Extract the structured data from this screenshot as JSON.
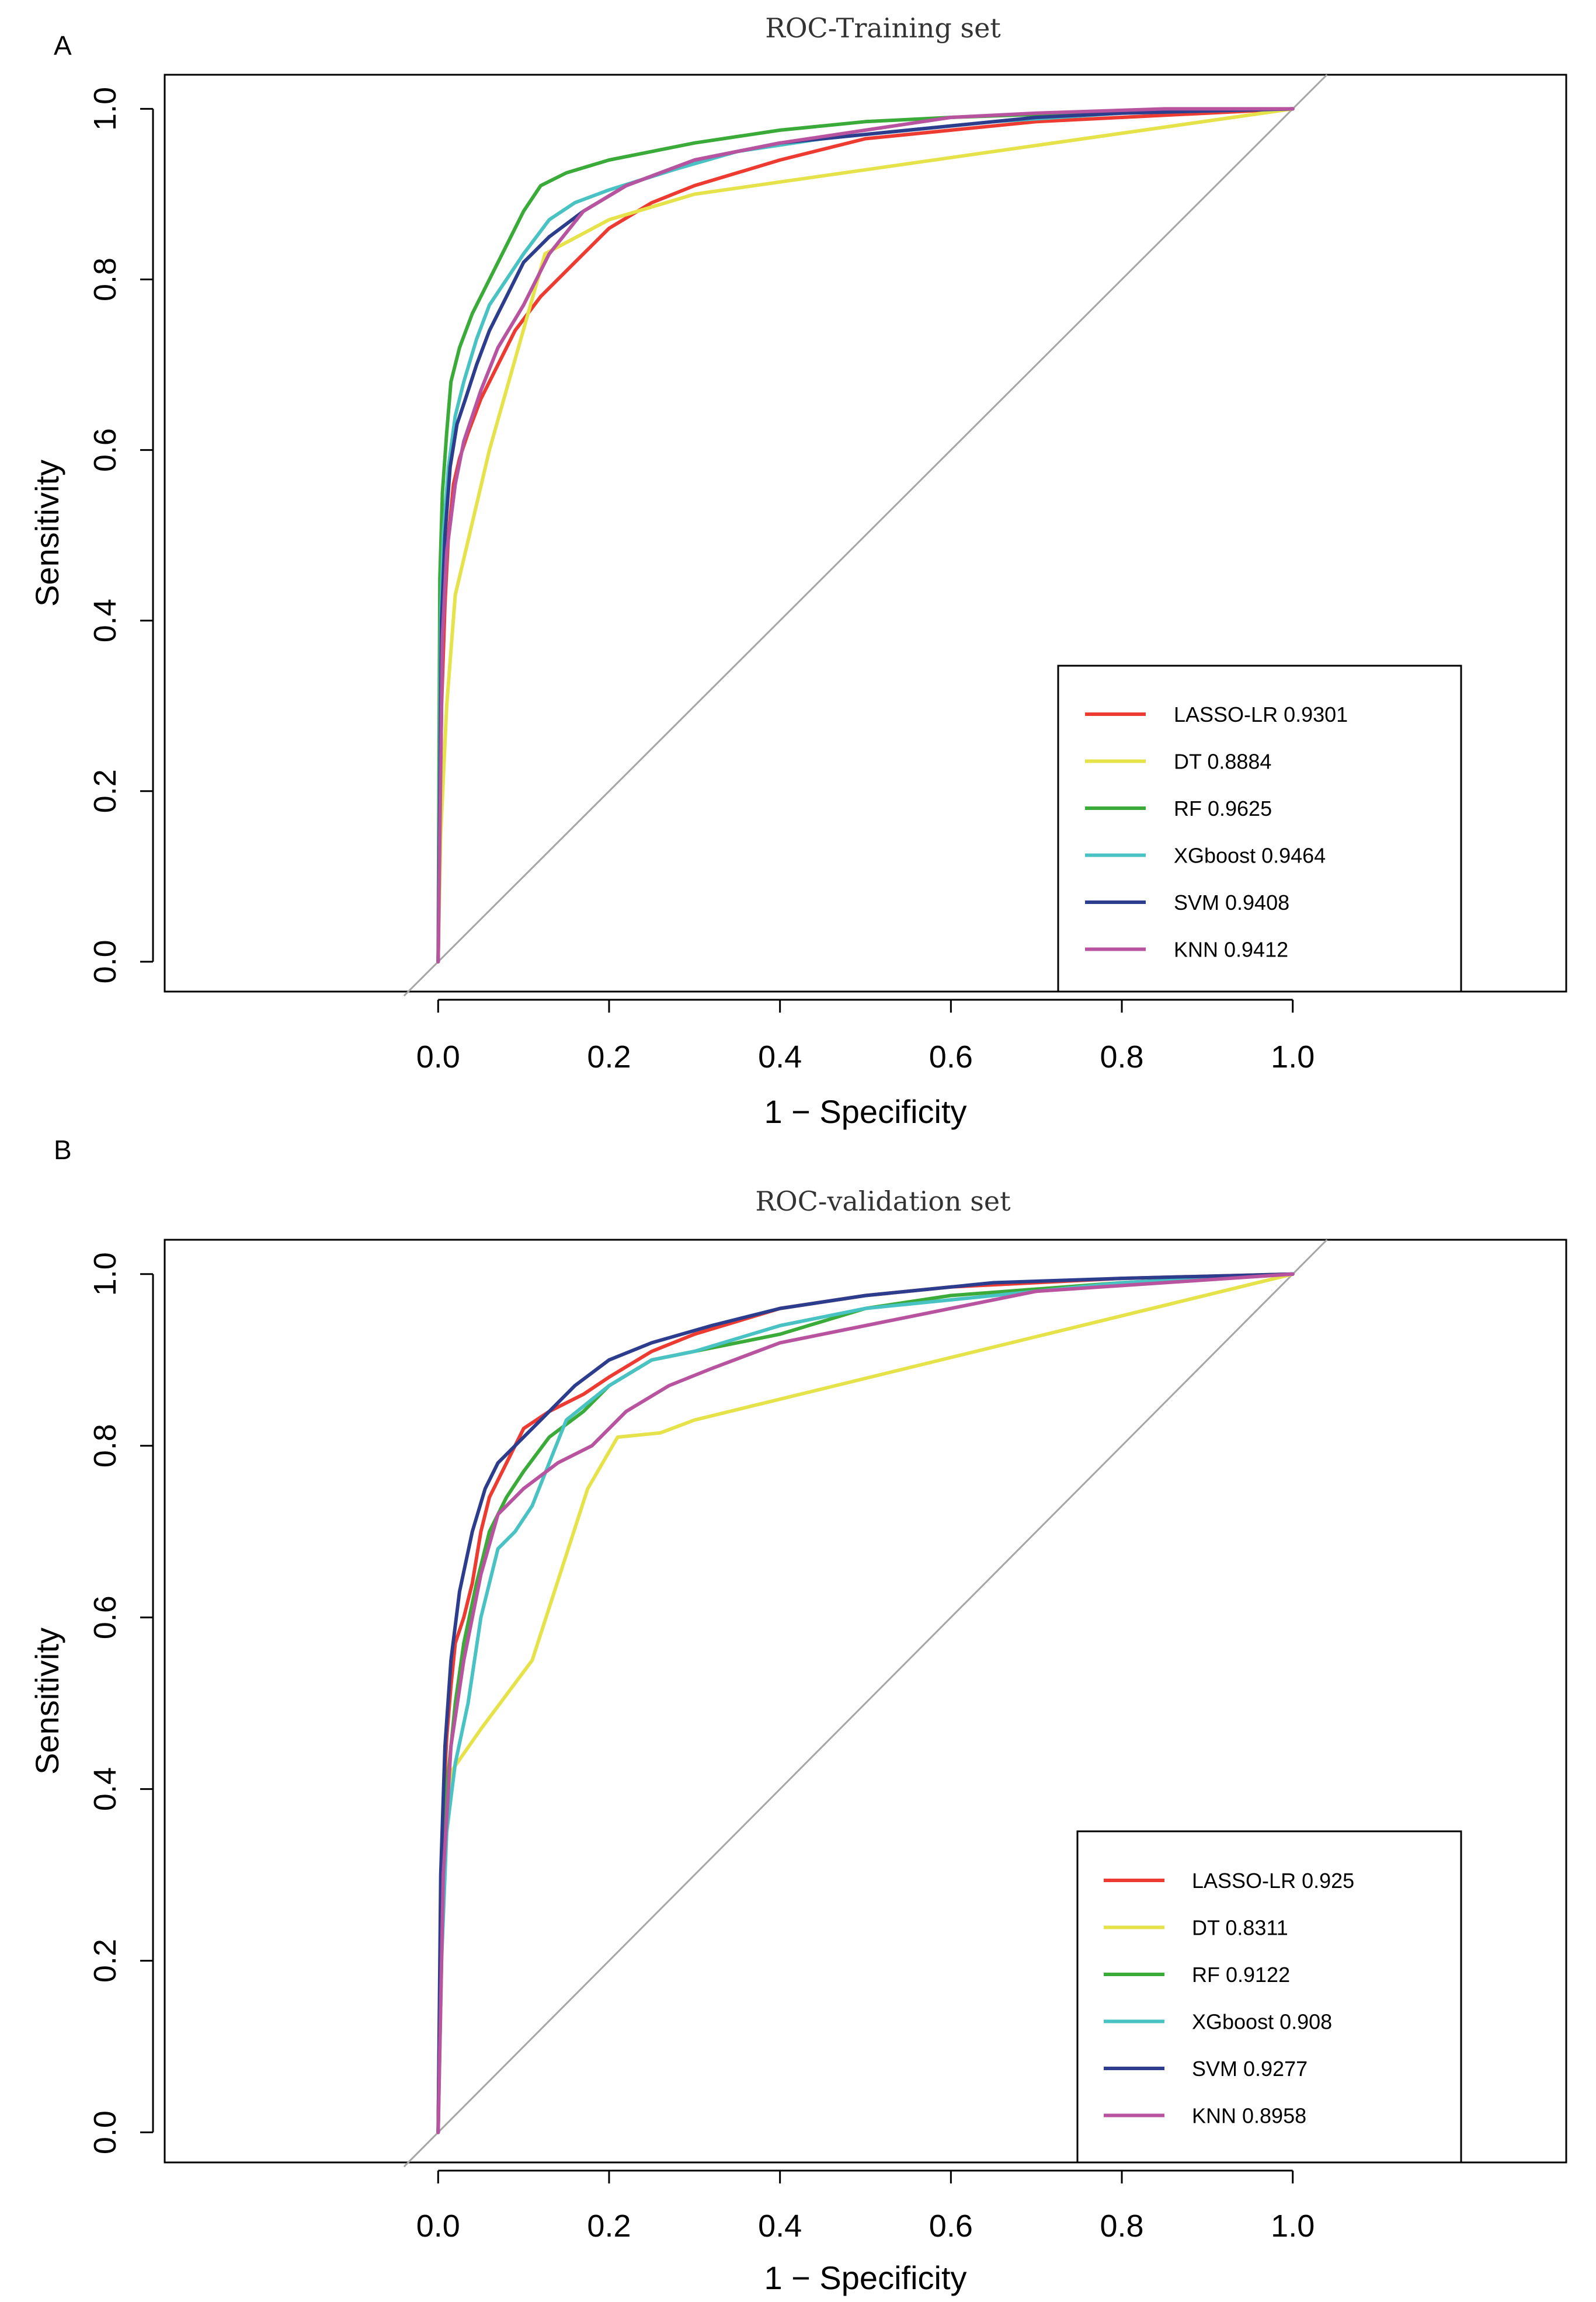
{
  "chart_data": [
    {
      "type": "line",
      "panel": "A",
      "title": "ROC-Training set",
      "xlabel": "1 − Specificity",
      "ylabel": "Sensitivity",
      "xlim": [
        -0.32,
        1.32
      ],
      "ylim": [
        -0.035,
        1.04
      ],
      "xticks": [
        0.0,
        0.2,
        0.4,
        0.6,
        0.8,
        1.0
      ],
      "yticks": [
        0.0,
        0.2,
        0.4,
        0.6,
        0.8,
        1.0
      ],
      "xtick_labels": [
        "0.0",
        "0.2",
        "0.4",
        "0.6",
        "0.8",
        "1.0"
      ],
      "ytick_labels": [
        "0.0",
        "0.2",
        "0.4",
        "0.6",
        "0.8",
        "1.0"
      ],
      "reference_line": [
        [
          -0.04,
          -0.04
        ],
        [
          1.04,
          1.04
        ]
      ],
      "legend_position": "bottom-right",
      "series": [
        {
          "name": "LASSO-LR",
          "auc": "0.9301",
          "color": "#ee3b32",
          "x": [
            0,
            0.004,
            0.008,
            0.012,
            0.018,
            0.025,
            0.035,
            0.05,
            0.07,
            0.09,
            0.12,
            0.16,
            0.2,
            0.25,
            0.3,
            0.4,
            0.5,
            0.6,
            0.7,
            0.8,
            0.9,
            1.0
          ],
          "y": [
            0,
            0.3,
            0.42,
            0.5,
            0.56,
            0.59,
            0.62,
            0.66,
            0.7,
            0.74,
            0.78,
            0.82,
            0.86,
            0.89,
            0.91,
            0.94,
            0.965,
            0.975,
            0.985,
            0.99,
            0.995,
            1.0
          ]
        },
        {
          "name": "DT",
          "auc": "0.8884",
          "color": "#e6e24a",
          "x": [
            0,
            0.003,
            0.01,
            0.02,
            0.06,
            0.125,
            0.2,
            0.3,
            1.0
          ],
          "y": [
            0,
            0.15,
            0.3,
            0.43,
            0.6,
            0.83,
            0.87,
            0.9,
            1.0
          ]
        },
        {
          "name": "RF",
          "auc": "0.9625",
          "color": "#3aab38",
          "x": [
            0,
            0.002,
            0.005,
            0.01,
            0.015,
            0.025,
            0.04,
            0.06,
            0.08,
            0.1,
            0.12,
            0.15,
            0.2,
            0.25,
            0.3,
            0.4,
            0.5,
            0.6,
            0.8,
            1.0
          ],
          "y": [
            0,
            0.45,
            0.55,
            0.62,
            0.68,
            0.72,
            0.76,
            0.8,
            0.84,
            0.88,
            0.91,
            0.925,
            0.94,
            0.95,
            0.96,
            0.975,
            0.985,
            0.99,
            0.997,
            1.0
          ]
        },
        {
          "name": "XGboost",
          "auc": "0.9464",
          "color": "#48c2c3",
          "x": [
            0,
            0.003,
            0.006,
            0.012,
            0.02,
            0.03,
            0.045,
            0.06,
            0.08,
            0.1,
            0.13,
            0.16,
            0.2,
            0.28,
            0.35,
            0.45,
            0.55,
            0.65,
            0.8,
            1.0
          ],
          "y": [
            0,
            0.4,
            0.5,
            0.58,
            0.64,
            0.68,
            0.73,
            0.77,
            0.8,
            0.83,
            0.87,
            0.89,
            0.905,
            0.93,
            0.95,
            0.965,
            0.975,
            0.985,
            0.995,
            1.0
          ]
        },
        {
          "name": "SVM",
          "auc": "0.9408",
          "color": "#2d3d8e",
          "x": [
            0,
            0.004,
            0.008,
            0.014,
            0.022,
            0.032,
            0.045,
            0.06,
            0.08,
            0.1,
            0.13,
            0.17,
            0.22,
            0.3,
            0.4,
            0.5,
            0.6,
            0.7,
            0.8,
            1.0
          ],
          "y": [
            0,
            0.4,
            0.5,
            0.58,
            0.63,
            0.66,
            0.7,
            0.74,
            0.78,
            0.82,
            0.85,
            0.88,
            0.91,
            0.94,
            0.96,
            0.97,
            0.98,
            0.99,
            0.995,
            1.0
          ]
        },
        {
          "name": "KNN",
          "auc": "0.9412",
          "color": "#b8539f",
          "x": [
            0,
            0.005,
            0.01,
            0.02,
            0.03,
            0.05,
            0.07,
            0.1,
            0.13,
            0.17,
            0.22,
            0.3,
            0.4,
            0.5,
            0.6,
            0.7,
            0.85,
            1.0
          ],
          "y": [
            0,
            0.38,
            0.48,
            0.56,
            0.61,
            0.67,
            0.72,
            0.77,
            0.83,
            0.88,
            0.91,
            0.94,
            0.96,
            0.975,
            0.99,
            0.995,
            1.0,
            1.0
          ]
        }
      ]
    },
    {
      "type": "line",
      "panel": "B",
      "title": "ROC-validation set",
      "xlabel": "1 − Specificity",
      "ylabel": "Sensitivity",
      "xlim": [
        -0.32,
        1.32
      ],
      "ylim": [
        -0.035,
        1.04
      ],
      "xticks": [
        0.0,
        0.2,
        0.4,
        0.6,
        0.8,
        1.0
      ],
      "yticks": [
        0.0,
        0.2,
        0.4,
        0.6,
        0.8,
        1.0
      ],
      "xtick_labels": [
        "0.0",
        "0.2",
        "0.4",
        "0.6",
        "0.8",
        "1.0"
      ],
      "ytick_labels": [
        "0.0",
        "0.2",
        "0.4",
        "0.6",
        "0.8",
        "1.0"
      ],
      "reference_line": [
        [
          -0.04,
          -0.04
        ],
        [
          1.04,
          1.04
        ]
      ],
      "legend_position": "bottom-right",
      "series": [
        {
          "name": "LASSO-LR",
          "auc": "0.925",
          "color": "#ee3b32",
          "x": [
            0,
            0.003,
            0.006,
            0.01,
            0.015,
            0.02,
            0.03,
            0.04,
            0.05,
            0.06,
            0.08,
            0.1,
            0.13,
            0.17,
            0.2,
            0.25,
            0.3,
            0.4,
            0.5,
            0.6,
            0.8,
            1.0
          ],
          "y": [
            0,
            0.25,
            0.38,
            0.46,
            0.52,
            0.57,
            0.6,
            0.64,
            0.7,
            0.74,
            0.78,
            0.82,
            0.84,
            0.86,
            0.88,
            0.91,
            0.93,
            0.96,
            0.975,
            0.985,
            0.995,
            1.0
          ]
        },
        {
          "name": "DT",
          "auc": "0.8311",
          "color": "#e6e24a",
          "x": [
            0,
            0.005,
            0.015,
            0.05,
            0.11,
            0.175,
            0.21,
            0.26,
            0.3,
            1.0
          ],
          "y": [
            0,
            0.3,
            0.42,
            0.47,
            0.55,
            0.75,
            0.81,
            0.815,
            0.83,
            1.0
          ]
        },
        {
          "name": "RF",
          "auc": "0.9122",
          "color": "#3aab38",
          "x": [
            0,
            0.004,
            0.01,
            0.02,
            0.03,
            0.045,
            0.06,
            0.08,
            0.1,
            0.13,
            0.17,
            0.2,
            0.25,
            0.3,
            0.4,
            0.5,
            0.6,
            0.8,
            1.0
          ],
          "y": [
            0,
            0.25,
            0.4,
            0.5,
            0.57,
            0.64,
            0.7,
            0.74,
            0.77,
            0.81,
            0.84,
            0.87,
            0.9,
            0.91,
            0.93,
            0.96,
            0.975,
            0.99,
            1.0
          ]
        },
        {
          "name": "XGboost",
          "auc": "0.908",
          "color": "#48c2c3",
          "x": [
            0,
            0.004,
            0.01,
            0.02,
            0.035,
            0.05,
            0.07,
            0.09,
            0.11,
            0.13,
            0.15,
            0.2,
            0.25,
            0.3,
            0.4,
            0.5,
            0.6,
            0.8,
            1.0
          ],
          "y": [
            0,
            0.2,
            0.35,
            0.43,
            0.5,
            0.6,
            0.68,
            0.7,
            0.73,
            0.78,
            0.83,
            0.87,
            0.9,
            0.91,
            0.94,
            0.96,
            0.97,
            0.99,
            1.0
          ]
        },
        {
          "name": "SVM",
          "auc": "0.9277",
          "color": "#2d3d8e",
          "x": [
            0,
            0.003,
            0.008,
            0.015,
            0.025,
            0.04,
            0.055,
            0.07,
            0.09,
            0.12,
            0.16,
            0.2,
            0.25,
            0.32,
            0.4,
            0.5,
            0.65,
            0.8,
            1.0
          ],
          "y": [
            0,
            0.3,
            0.45,
            0.55,
            0.63,
            0.7,
            0.75,
            0.78,
            0.8,
            0.83,
            0.87,
            0.9,
            0.92,
            0.94,
            0.96,
            0.975,
            0.99,
            0.995,
            1.0
          ]
        },
        {
          "name": "KNN",
          "auc": "0.8958",
          "color": "#b8539f",
          "x": [
            0,
            0.006,
            0.015,
            0.03,
            0.05,
            0.07,
            0.1,
            0.14,
            0.18,
            0.22,
            0.27,
            0.32,
            0.4,
            0.5,
            0.6,
            0.7,
            0.85,
            1.0
          ],
          "y": [
            0,
            0.3,
            0.45,
            0.55,
            0.65,
            0.72,
            0.75,
            0.78,
            0.8,
            0.84,
            0.87,
            0.89,
            0.92,
            0.94,
            0.96,
            0.98,
            0.99,
            1.0
          ]
        }
      ]
    }
  ]
}
